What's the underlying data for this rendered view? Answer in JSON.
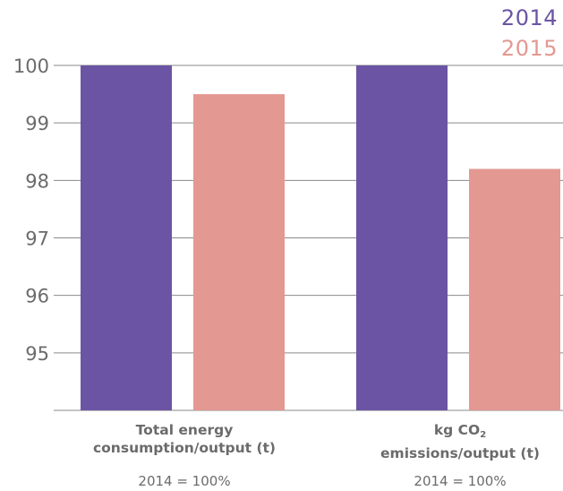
{
  "chart_data": {
    "type": "bar",
    "categories": [
      {
        "line1": "Total energy",
        "line2": "consumption/output (t)",
        "subtitle": "2014 = 100%"
      },
      {
        "line1_prefix": "kg CO",
        "line1_sub": "2",
        "line2": "emissions/output (t)",
        "subtitle": "2014 = 100%"
      }
    ],
    "series": [
      {
        "name": "2014",
        "color": "#6b54a3",
        "values": [
          100,
          100
        ]
      },
      {
        "name": "2015",
        "color": "#e39892",
        "values": [
          99.5,
          98.2
        ]
      }
    ],
    "ylim": [
      94,
      100
    ],
    "yticks": [
      100,
      99,
      98,
      97,
      96,
      95
    ],
    "grid": true,
    "legend": "top-right"
  }
}
